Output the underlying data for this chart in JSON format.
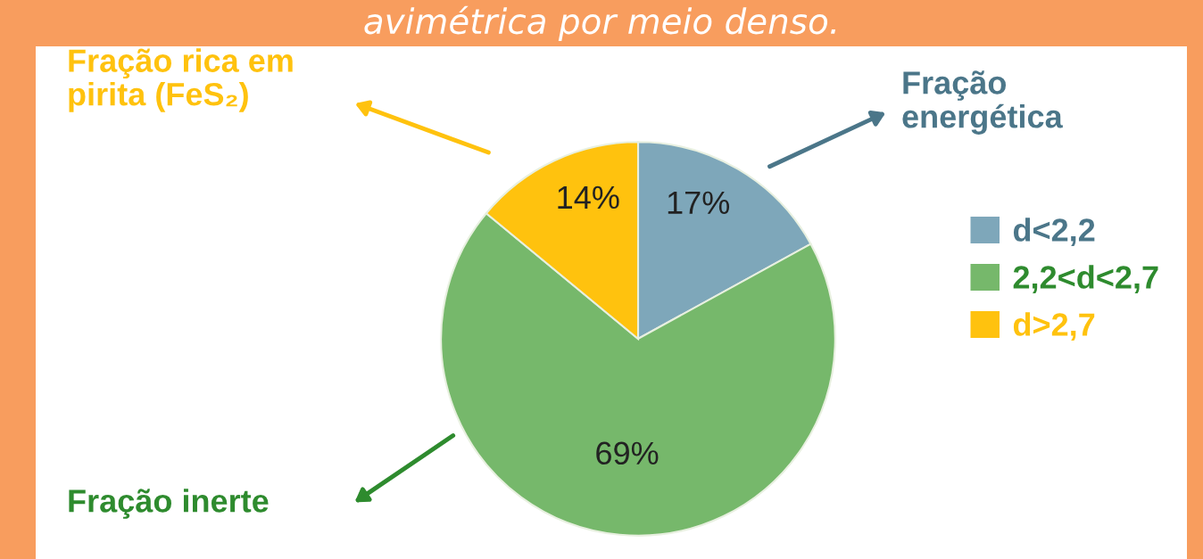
{
  "chart_data": {
    "type": "pie",
    "title": "avimétrica por meio denso.",
    "categories": [
      "d<2,2",
      "2,2<d<2,7",
      "d>2,7"
    ],
    "values": [
      17,
      69,
      14
    ],
    "value_labels": [
      "17%",
      "69%",
      "14%"
    ],
    "colors": [
      "#7ea7ba",
      "#76b86b",
      "#ffc20e"
    ],
    "legend": "right",
    "annotations": [
      "Fração energética",
      "Fração inerte",
      "Fração rica em pirita (FeS₂)"
    ]
  }
}
